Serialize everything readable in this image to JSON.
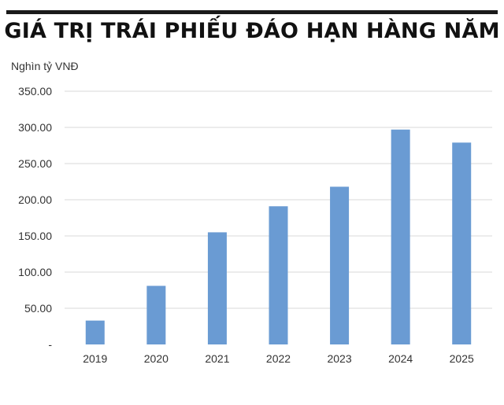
{
  "header": {
    "title": "GIÁ TRỊ TRÁI PHIẾU ĐÁO HẠN HÀNG NĂM"
  },
  "colors": {
    "bar": "#6a9bd3",
    "grid": "#d9d9d9",
    "rule": "#1a1a1a"
  },
  "chart_data": {
    "type": "bar",
    "title": "GIÁ TRỊ TRÁI PHIẾU ĐÁO HẠN HÀNG NĂM",
    "ylabel": "Nghìn tỷ VNĐ",
    "xlabel": "",
    "categories": [
      "2019",
      "2020",
      "2021",
      "2022",
      "2023",
      "2024",
      "2025"
    ],
    "values": [
      33,
      81,
      155,
      191,
      218,
      297,
      279
    ],
    "ylim": [
      0,
      350
    ],
    "yticks": [
      0,
      50,
      100,
      150,
      200,
      250,
      300,
      350
    ],
    "ytick_labels": [
      "-",
      "50.00",
      "100.00",
      "150.00",
      "200.00",
      "250.00",
      "300.00",
      "350.00"
    ],
    "grid": true,
    "legend": "none"
  }
}
